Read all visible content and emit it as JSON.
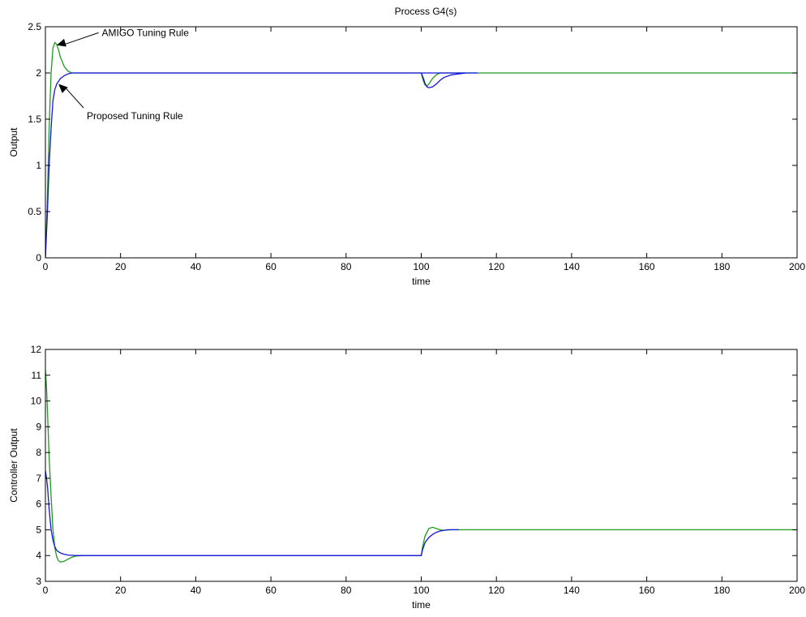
{
  "figure_title": "Process G4(s)",
  "colors": {
    "amigo": "#1e9a1e",
    "proposed": "#1515e0",
    "axis": "#000000"
  },
  "chart_data": [
    {
      "type": "line",
      "title": "Process G4(s)",
      "xlabel": "time",
      "ylabel": "Output",
      "xlim": [
        0,
        200
      ],
      "ylim": [
        0,
        2.5
      ],
      "xticks": [
        0,
        20,
        40,
        60,
        80,
        100,
        120,
        140,
        160,
        180,
        200
      ],
      "yticks": [
        0,
        0.5,
        1,
        1.5,
        2,
        2.5
      ],
      "grid": false,
      "series": [
        {
          "name": "AMIGO Tuning Rule",
          "color": "#1e9a1e",
          "x": [
            0,
            0.5,
            1,
            1.5,
            2,
            2.5,
            3,
            3.5,
            4,
            5,
            6,
            7,
            8,
            10,
            20,
            50,
            100,
            100.5,
            101,
            101.5,
            102,
            103,
            104,
            105,
            107,
            110,
            115,
            130,
            200
          ],
          "y": [
            0,
            0.6,
            1.4,
            2.0,
            2.27,
            2.33,
            2.31,
            2.25,
            2.17,
            2.07,
            2.02,
            2.0,
            2.0,
            2.0,
            2.0,
            2.0,
            2.0,
            1.92,
            1.87,
            1.86,
            1.88,
            1.94,
            1.98,
            2.0,
            2.0,
            2.0,
            2.0,
            2.0,
            2.0
          ]
        },
        {
          "name": "Proposed Tuning Rule",
          "color": "#1515e0",
          "x": [
            0,
            0.5,
            1,
            1.5,
            2,
            2.5,
            3,
            4,
            5,
            6,
            7,
            8,
            10,
            115,
            100,
            100.5,
            101,
            101.5,
            102,
            103,
            104,
            105,
            106,
            108,
            110,
            112,
            115
          ],
          "y": [
            0,
            0.45,
            1.0,
            1.4,
            1.7,
            1.82,
            1.88,
            1.94,
            1.97,
            1.99,
            2.0,
            2.0,
            2.0,
            2.0,
            2.0,
            1.95,
            1.89,
            1.85,
            1.84,
            1.85,
            1.88,
            1.92,
            1.95,
            1.98,
            1.99,
            2.0,
            2.0
          ]
        }
      ],
      "annotations": [
        {
          "text": "AMIGO Tuning Rule",
          "arrow_to": [
            3,
            2.3
          ],
          "text_at": [
            15,
            2.4
          ]
        },
        {
          "text": "Proposed Tuning Rule",
          "arrow_to": [
            3.5,
            1.88
          ],
          "text_at": [
            11,
            1.5
          ]
        }
      ]
    },
    {
      "type": "line",
      "title": "",
      "xlabel": "time",
      "ylabel": "Controller Output",
      "xlim": [
        0,
        200
      ],
      "ylim": [
        3,
        12
      ],
      "xticks": [
        0,
        20,
        40,
        60,
        80,
        100,
        120,
        140,
        160,
        180,
        200
      ],
      "yticks": [
        3,
        4,
        5,
        6,
        7,
        8,
        9,
        10,
        11,
        12
      ],
      "grid": false,
      "series": [
        {
          "name": "AMIGO Tuning Rule",
          "color": "#1e9a1e",
          "x": [
            0,
            0.3,
            0.6,
            1,
            1.5,
            2,
            2.5,
            3,
            3.5,
            4,
            5,
            6,
            7,
            8,
            10,
            20,
            50,
            100,
            100.3,
            101,
            102,
            103,
            104,
            105,
            106,
            108,
            110,
            200
          ],
          "y": [
            11.2,
            10.5,
            9.4,
            7.8,
            6.3,
            5.0,
            4.3,
            3.95,
            3.8,
            3.75,
            3.78,
            3.86,
            3.93,
            3.98,
            4.0,
            4.0,
            4.0,
            4.0,
            4.3,
            4.75,
            5.05,
            5.1,
            5.05,
            5.0,
            4.98,
            5.0,
            5.0,
            5.0
          ]
        },
        {
          "name": "Proposed Tuning Rule",
          "color": "#1515e0",
          "x": [
            0,
            0.3,
            0.6,
            1,
            1.5,
            2,
            2.5,
            3,
            4,
            5,
            6,
            7,
            8,
            10,
            100,
            100.3,
            101,
            102,
            103,
            104,
            105,
            106,
            107,
            110
          ],
          "y": [
            7.3,
            7.0,
            6.6,
            5.8,
            5.0,
            4.6,
            4.35,
            4.2,
            4.1,
            4.05,
            4.02,
            4.01,
            4.0,
            4.0,
            4.0,
            4.2,
            4.5,
            4.7,
            4.82,
            4.9,
            4.95,
            4.98,
            5.0,
            5.0
          ]
        }
      ]
    }
  ]
}
